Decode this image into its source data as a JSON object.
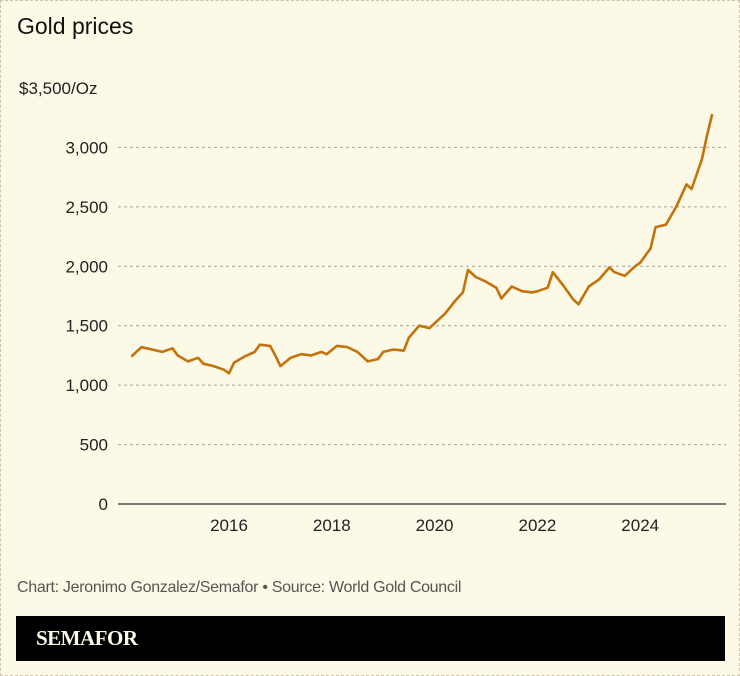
{
  "title": "Gold prices",
  "credit": "Chart: Jeronimo Gonzalez/Semafor • Source: World Gold Council",
  "brand": "SEMAFOR",
  "chart_data": {
    "type": "line",
    "title": "Gold prices",
    "ylabel": "",
    "xlabel": "",
    "ylim": [
      0,
      3500
    ],
    "xlim": [
      2014.0,
      2025.6
    ],
    "y_ticks": [
      0,
      500,
      1000,
      1500,
      2000,
      2500,
      3000,
      3500
    ],
    "y_tick_labels": [
      "0",
      "500",
      "1,000",
      "1,500",
      "2,000",
      "2,500",
      "3,000",
      "$3,500/Oz"
    ],
    "x_ticks": [
      2016,
      2018,
      2020,
      2022,
      2024
    ],
    "x_tick_labels": [
      "2016",
      "2018",
      "2020",
      "2022",
      "2024"
    ],
    "grid": true,
    "line_color": "#c4720c",
    "x": [
      2014.1,
      2014.3,
      2014.5,
      2014.7,
      2014.9,
      2015.0,
      2015.2,
      2015.4,
      2015.5,
      2015.7,
      2015.9,
      2016.0,
      2016.1,
      2016.3,
      2016.5,
      2016.6,
      2016.8,
      2016.9,
      2017.0,
      2017.2,
      2017.4,
      2017.6,
      2017.8,
      2017.9,
      2018.1,
      2018.3,
      2018.5,
      2018.7,
      2018.9,
      2019.0,
      2019.2,
      2019.4,
      2019.5,
      2019.7,
      2019.9,
      2020.1,
      2020.2,
      2020.4,
      2020.55,
      2020.65,
      2020.8,
      2021.0,
      2021.2,
      2021.3,
      2021.5,
      2021.7,
      2021.9,
      2022.0,
      2022.2,
      2022.3,
      2022.5,
      2022.7,
      2022.8,
      2023.0,
      2023.2,
      2023.4,
      2023.5,
      2023.7,
      2023.9,
      2024.0,
      2024.2,
      2024.3,
      2024.5,
      2024.7,
      2024.9,
      2025.0,
      2025.2,
      2025.3,
      2025.4
    ],
    "y": [
      1240,
      1320,
      1300,
      1280,
      1310,
      1250,
      1200,
      1230,
      1180,
      1160,
      1130,
      1100,
      1190,
      1240,
      1280,
      1340,
      1330,
      1250,
      1160,
      1230,
      1260,
      1250,
      1280,
      1260,
      1330,
      1320,
      1280,
      1200,
      1220,
      1280,
      1300,
      1290,
      1400,
      1500,
      1480,
      1560,
      1600,
      1710,
      1780,
      1970,
      1910,
      1870,
      1820,
      1730,
      1830,
      1790,
      1780,
      1790,
      1820,
      1950,
      1840,
      1720,
      1680,
      1830,
      1890,
      1990,
      1950,
      1920,
      2000,
      2030,
      2150,
      2330,
      2350,
      2500,
      2690,
      2650,
      2900,
      3100,
      3280
    ]
  }
}
